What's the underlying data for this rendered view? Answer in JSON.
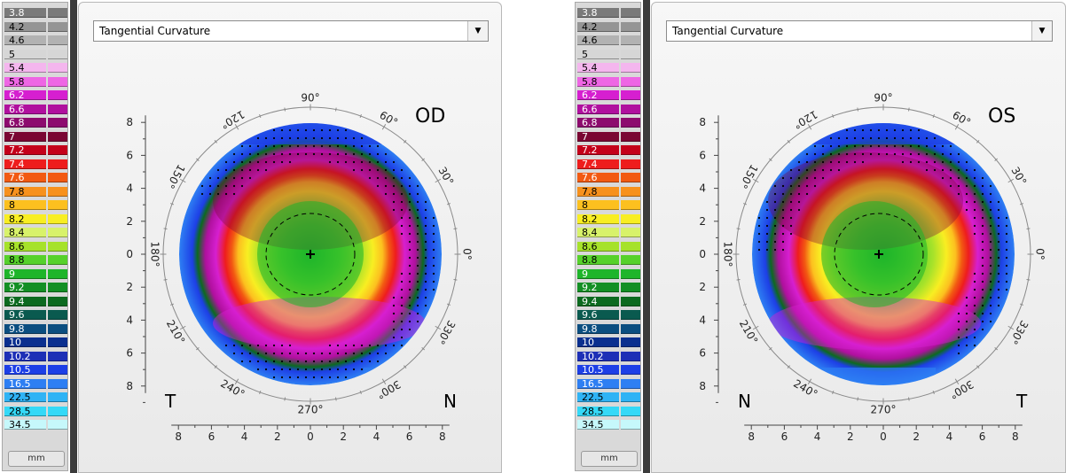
{
  "scale": {
    "items": [
      {
        "label": "3.8",
        "color": "#7a7a7a"
      },
      {
        "label": "4.2",
        "color": "#959595"
      },
      {
        "label": "4.6",
        "color": "#b2b2b2"
      },
      {
        "label": "5",
        "color": "#d6d6d6"
      },
      {
        "label": "5.4",
        "color": "#f4b6ee"
      },
      {
        "label": "5.8",
        "color": "#ee66e4"
      },
      {
        "label": "6.2",
        "color": "#d61fd0"
      },
      {
        "label": "6.6",
        "color": "#b0109e"
      },
      {
        "label": "6.8",
        "color": "#8d0b6e"
      },
      {
        "label": "7",
        "color": "#7a0733"
      },
      {
        "label": "7.2",
        "color": "#c4001a"
      },
      {
        "label": "7.4",
        "color": "#ee1d1d"
      },
      {
        "label": "7.6",
        "color": "#f25a12"
      },
      {
        "label": "7.8",
        "color": "#f7911d"
      },
      {
        "label": "8",
        "color": "#fcc01f"
      },
      {
        "label": "8.2",
        "color": "#f8ee22"
      },
      {
        "label": "8.4",
        "color": "#d8f26a"
      },
      {
        "label": "8.6",
        "color": "#a6e22a"
      },
      {
        "label": "8.8",
        "color": "#56d12b"
      },
      {
        "label": "9",
        "color": "#1eb52a"
      },
      {
        "label": "9.2",
        "color": "#138f24"
      },
      {
        "label": "9.4",
        "color": "#0c6a1f"
      },
      {
        "label": "9.6",
        "color": "#0a5a4f"
      },
      {
        "label": "9.8",
        "color": "#0b4e80"
      },
      {
        "label": "10",
        "color": "#0a2f8f"
      },
      {
        "label": "10.2",
        "color": "#1d2fb6"
      },
      {
        "label": "10.5",
        "color": "#1d3fe6"
      },
      {
        "label": "16.5",
        "color": "#2e7ff3"
      },
      {
        "label": "22.5",
        "color": "#2fb3f5"
      },
      {
        "label": "28.5",
        "color": "#35d9f7"
      },
      {
        "label": "34.5",
        "color": "#c6f8fb"
      }
    ],
    "unit_button": "mm"
  },
  "panels": [
    {
      "dropdown": {
        "value": "Tangential Curvature"
      },
      "eye": "OD",
      "left_side": "T",
      "right_side": "N",
      "angle_labels": [
        "90°",
        "60°",
        "30°",
        "0°",
        "330°",
        "300°",
        "270°",
        "240°",
        "210°",
        "180°",
        "150°",
        "120°"
      ],
      "y_ticks": [
        "8",
        "6",
        "4",
        "2",
        "0",
        "2",
        "4",
        "6",
        "8"
      ],
      "x_ticks": [
        "8",
        "6",
        "4",
        "2",
        "0",
        "2",
        "4",
        "6",
        "8"
      ]
    },
    {
      "dropdown": {
        "value": "Tangential Curvature"
      },
      "eye": "OS",
      "left_side": "N",
      "right_side": "T",
      "angle_labels": [
        "90°",
        "60°",
        "30°",
        "0°",
        "330°",
        "300°",
        "270°",
        "240°",
        "210°",
        "180°",
        "150°",
        "120°"
      ],
      "y_ticks": [
        "8",
        "6",
        "4",
        "2",
        "0",
        "2",
        "4",
        "6",
        "8"
      ],
      "x_ticks": [
        "8",
        "6",
        "4",
        "2",
        "0",
        "2",
        "4",
        "6",
        "8"
      ]
    }
  ],
  "icons": {
    "dropdown_arrow": "chevron-down-icon",
    "center_mark": "crosshair-icon"
  }
}
